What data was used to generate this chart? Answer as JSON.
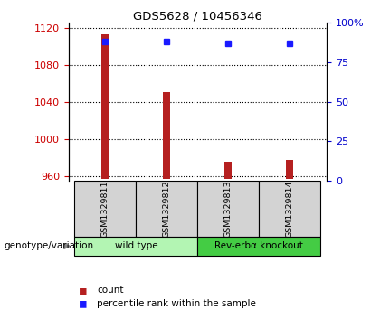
{
  "title": "GDS5628 / 10456346",
  "samples": [
    "GSM1329811",
    "GSM1329812",
    "GSM1329813",
    "GSM1329814"
  ],
  "counts": [
    1113,
    1050,
    975,
    977
  ],
  "percentiles": [
    88,
    88,
    87,
    87
  ],
  "ylim_left": [
    955,
    1125
  ],
  "ylim_right": [
    0,
    100
  ],
  "yticks_left": [
    960,
    1000,
    1040,
    1080,
    1120
  ],
  "yticks_right": [
    0,
    25,
    50,
    75,
    100
  ],
  "bar_color": "#b52020",
  "dot_color": "#1a1aff",
  "bar_bottom": 957,
  "bar_width": 0.12,
  "groups": [
    {
      "label": "wild type",
      "indices": [
        0,
        1
      ],
      "color": "#b3f5b3"
    },
    {
      "label": "Rev-erbα knockout",
      "indices": [
        2,
        3
      ],
      "color": "#44cc44"
    }
  ],
  "legend_items": [
    {
      "color": "#b52020",
      "label": "count"
    },
    {
      "color": "#1a1aff",
      "label": "percentile rank within the sample"
    }
  ],
  "xlabel_left": "genotype/variation",
  "left_tick_color": "#cc0000",
  "right_tick_color": "#0000cc",
  "figsize": [
    4.2,
    3.63
  ],
  "dpi": 100
}
